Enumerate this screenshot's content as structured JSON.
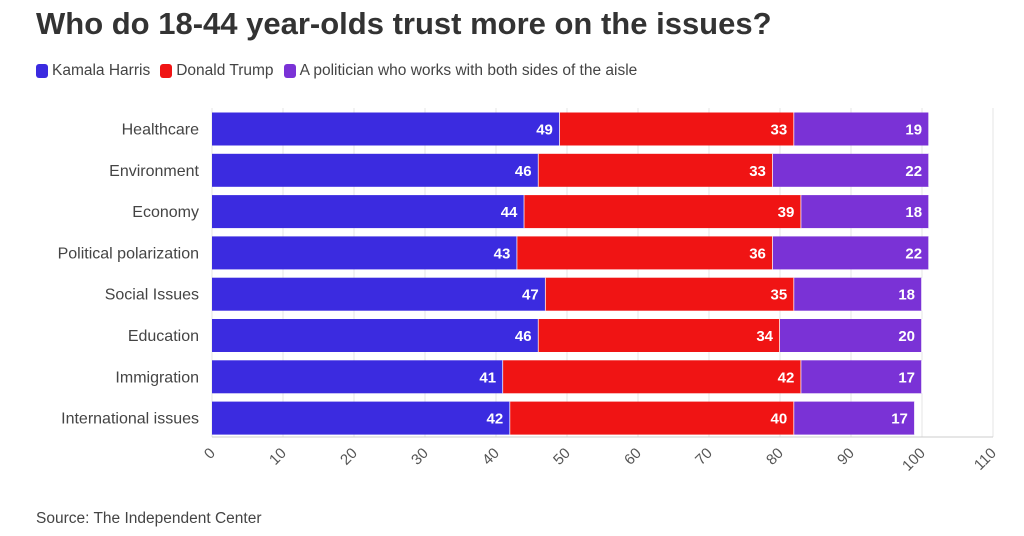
{
  "chart_data": {
    "type": "bar",
    "orientation": "horizontal",
    "stacked": true,
    "title": "Who do 18-44 year-olds trust more on the issues?",
    "categories": [
      "Healthcare",
      "Environment",
      "Economy",
      "Political polarization",
      "Social Issues",
      "Education",
      "Immigration",
      "International issues"
    ],
    "series": [
      {
        "name": "Kamala Harris",
        "color": "#3b2be0",
        "values": [
          49,
          46,
          44,
          43,
          47,
          46,
          41,
          42
        ]
      },
      {
        "name": "Donald Trump",
        "color": "#f01414",
        "values": [
          33,
          33,
          39,
          36,
          35,
          34,
          42,
          40
        ]
      },
      {
        "name": "A politician who works with both sides of the aisle",
        "color": "#7a32d6",
        "values": [
          19,
          22,
          18,
          22,
          18,
          20,
          17,
          17
        ]
      }
    ],
    "xlim": [
      0,
      110
    ],
    "xticks": [
      0,
      10,
      20,
      30,
      40,
      50,
      60,
      70,
      80,
      90,
      100,
      110
    ],
    "grid": true,
    "legend_position": "top-left",
    "source": "Source: The Independent Center"
  }
}
